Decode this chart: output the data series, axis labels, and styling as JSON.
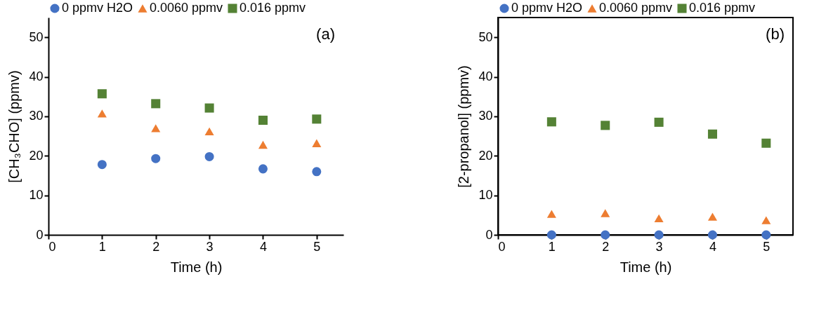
{
  "chart_data": [
    {
      "type": "scatter",
      "xlabel": "Time (h)",
      "ylabel": "[CH₃CHO] (ppmv)",
      "annotations": [
        "(a)"
      ],
      "x": [
        1,
        2,
        3,
        4,
        5
      ],
      "xlim": [
        0,
        5.5
      ],
      "xticks": [
        0,
        1,
        2,
        3,
        4,
        5
      ],
      "ylim": [
        0,
        55
      ],
      "yticks": [
        0,
        10,
        20,
        30,
        40,
        50
      ],
      "grid": false,
      "legend": "top",
      "series": [
        {
          "name": "0 ppmv H2O",
          "color": "#4472c4",
          "marker": "circle",
          "values": [
            17.8,
            19.3,
            19.8,
            16.7,
            16.0
          ]
        },
        {
          "name": "0.0060 ppmv",
          "color": "#ed7d31",
          "marker": "triangle",
          "values": [
            30.7,
            27.0,
            26.2,
            22.8,
            23.2
          ]
        },
        {
          "name": "0.016 ppmv",
          "color": "#548235",
          "marker": "square",
          "values": [
            35.7,
            33.2,
            32.1,
            29.0,
            29.3
          ]
        }
      ]
    },
    {
      "type": "scatter",
      "xlabel": "Time (h)",
      "ylabel": "[2-propanol] (ppmv)",
      "annotations": [
        "(b)"
      ],
      "x": [
        1,
        2,
        3,
        4,
        5
      ],
      "xlim": [
        0,
        5.5
      ],
      "xticks": [
        0,
        1,
        2,
        3,
        4,
        5
      ],
      "ylim": [
        0,
        55
      ],
      "yticks": [
        0,
        10,
        20,
        30,
        40,
        50
      ],
      "grid": false,
      "legend": "top",
      "series": [
        {
          "name": "0 ppmv H2O",
          "color": "#4472c4",
          "marker": "circle",
          "values": [
            0,
            0,
            0,
            0,
            0
          ]
        },
        {
          "name": "0.0060 ppmv",
          "color": "#ed7d31",
          "marker": "triangle",
          "values": [
            5.3,
            5.5,
            4.2,
            4.6,
            3.7
          ]
        },
        {
          "name": "0.016 ppmv",
          "color": "#548235",
          "marker": "square",
          "values": [
            28.6,
            27.7,
            28.5,
            25.5,
            23.2
          ]
        }
      ]
    }
  ]
}
